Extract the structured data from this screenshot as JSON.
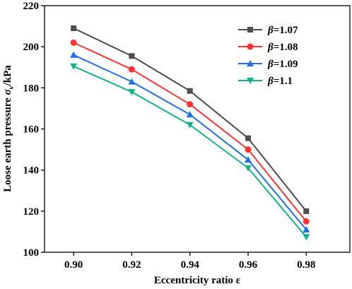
{
  "chart_data": {
    "type": "line",
    "xlabel": "Eccentricity ratio ε",
    "ylabel_parts": {
      "main": "Loose earth pressure ",
      "symbol": "σ",
      "subscript": "v",
      "unit": "/kPa"
    },
    "x": [
      0.9,
      0.92,
      0.94,
      0.96,
      0.98
    ],
    "x_tick_labels": [
      "0.90",
      "0.92",
      "0.94",
      "0.96",
      "0.98"
    ],
    "xlim": [
      0.89,
      0.995
    ],
    "ylim": [
      100,
      220
    ],
    "y_ticks": [
      100,
      120,
      140,
      160,
      180,
      200,
      220
    ],
    "grid": false,
    "legend_position": "top-right",
    "series": [
      {
        "name": "1.07",
        "legend_symbol": "β",
        "legend_value": "=1.07",
        "color": "#4d4d4d",
        "marker": "square",
        "values": [
          209,
          195.5,
          178.5,
          155.5,
          120
        ]
      },
      {
        "name": "1.08",
        "legend_symbol": "β",
        "legend_value": "=1.08",
        "color": "#ff3333",
        "marker": "circle",
        "values": [
          202,
          189,
          172,
          150,
          115
        ]
      },
      {
        "name": "1.09",
        "legend_symbol": "β",
        "legend_value": "=1.09",
        "color": "#1f6fe6",
        "marker": "triangle-up",
        "values": [
          196,
          183,
          167,
          145,
          111
        ]
      },
      {
        "name": "1.1",
        "legend_symbol": "β",
        "legend_value": "=1.1",
        "color": "#13b38a",
        "marker": "triangle-down",
        "values": [
          190.5,
          178,
          162,
          141,
          107.5
        ]
      }
    ]
  }
}
